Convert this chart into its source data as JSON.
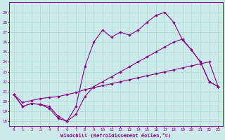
{
  "xlabel": "Windchill (Refroidissement éolien,°C)",
  "xlim_min": -0.5,
  "xlim_max": 23.5,
  "ylim_min": 17.5,
  "ylim_max": 30.0,
  "xticks": [
    0,
    1,
    2,
    3,
    4,
    5,
    6,
    7,
    8,
    9,
    10,
    11,
    12,
    13,
    14,
    15,
    16,
    17,
    18,
    19,
    20,
    21,
    22,
    23
  ],
  "yticks": [
    18,
    19,
    20,
    21,
    22,
    23,
    24,
    25,
    26,
    27,
    28,
    29
  ],
  "bg_color": "#cceaea",
  "line_color": "#880088",
  "grid_color": "#aad8d8",
  "line1_x": [
    0,
    1,
    2,
    3,
    4,
    5,
    6,
    7,
    8,
    9,
    10,
    11,
    12,
    13,
    14,
    15,
    16,
    17,
    18,
    19,
    20,
    21,
    22,
    23
  ],
  "line1_y": [
    20.7,
    19.5,
    19.8,
    19.7,
    19.3,
    18.3,
    18.0,
    18.7,
    20.5,
    21.5,
    22.0,
    22.5,
    23.0,
    23.5,
    24.0,
    24.5,
    25.0,
    25.5,
    26.0,
    26.3,
    25.2,
    24.0,
    22.0,
    21.5
  ],
  "line2_x": [
    0,
    1,
    2,
    3,
    4,
    5,
    6,
    7,
    8,
    9,
    10,
    11,
    12,
    13,
    14,
    15,
    16,
    17,
    18,
    19,
    20,
    21,
    22,
    23
  ],
  "line2_y": [
    20.7,
    19.5,
    19.8,
    19.7,
    19.5,
    18.5,
    18.0,
    19.5,
    23.5,
    26.0,
    27.2,
    26.5,
    27.0,
    26.7,
    27.2,
    28.0,
    28.7,
    29.0,
    28.0,
    26.2,
    25.2,
    24.0,
    22.0,
    21.5
  ],
  "line3_x": [
    0,
    1,
    2,
    3,
    4,
    5,
    6,
    7,
    8,
    9,
    10,
    11,
    12,
    13,
    14,
    15,
    16,
    17,
    18,
    19,
    20,
    21,
    22,
    23
  ],
  "line3_y": [
    20.7,
    19.9,
    20.1,
    20.3,
    20.4,
    20.5,
    20.7,
    20.9,
    21.2,
    21.4,
    21.6,
    21.8,
    22.0,
    22.2,
    22.4,
    22.6,
    22.8,
    23.0,
    23.2,
    23.4,
    23.6,
    23.8,
    24.0,
    21.5
  ]
}
